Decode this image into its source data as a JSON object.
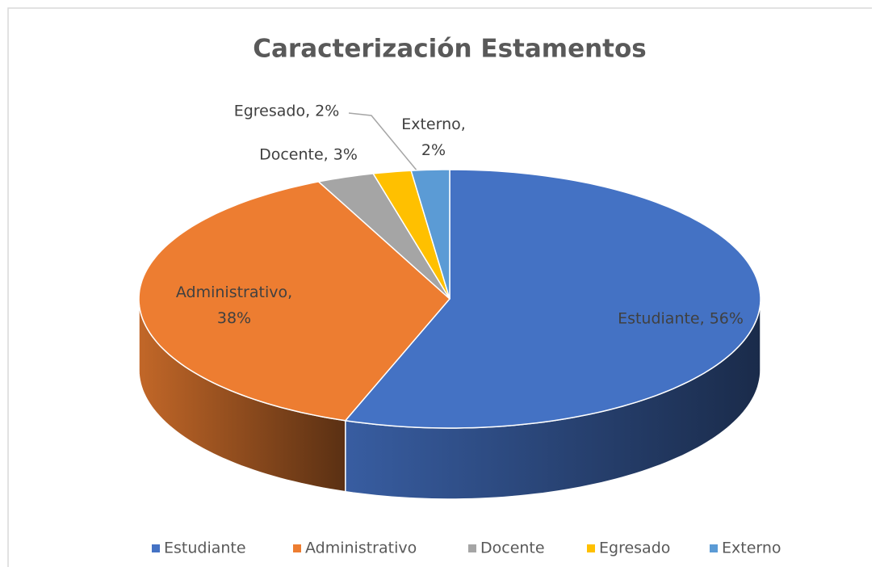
{
  "chart_data": {
    "type": "pie",
    "title": "Caracterización Estamentos",
    "categories": [
      "Estudiante",
      "Administrativo",
      "Docente",
      "Egresado",
      "Externo"
    ],
    "values": [
      56,
      38,
      3,
      2,
      2
    ],
    "value_labels": [
      "Estudiante, 56%",
      "Administrativo, 38%",
      "Docente, 3%",
      "Egresado, 2%",
      "Externo, 2%"
    ],
    "colors": [
      "#4472c4",
      "#ed7d31",
      "#a5a5a5",
      "#ffc000",
      "#5b9bd5"
    ],
    "legend": "bottom"
  }
}
